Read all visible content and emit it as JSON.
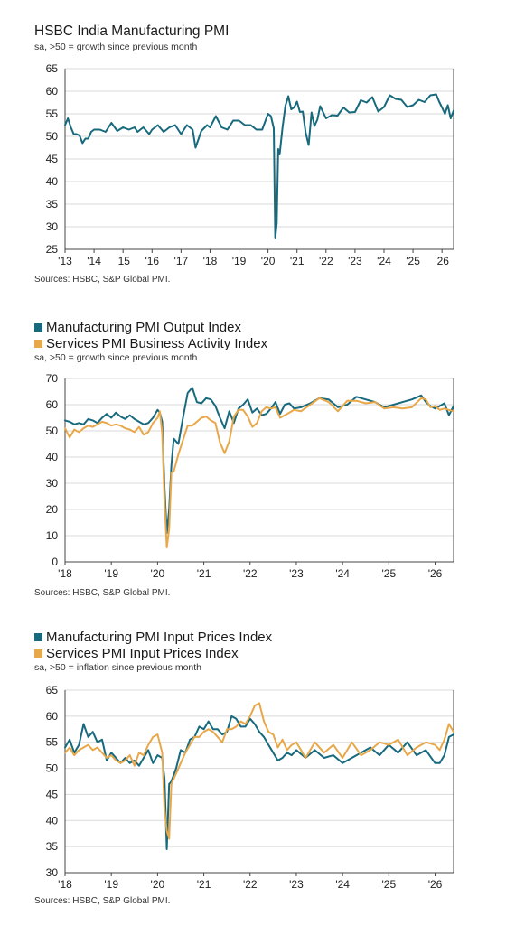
{
  "colors": {
    "manufacturing": "#176a7d",
    "services": "#e8a84a",
    "grid": "#d9d9d9"
  },
  "chart_data": [
    {
      "type": "line",
      "title": "HSBC India Manufacturing PMI",
      "subtitle": "sa, >50 = growth since previous month",
      "source": "Sources: HSBC, S&P Global PMI.",
      "xticks": [
        "'13",
        "'14",
        "'15",
        "'16",
        "'17",
        "'18",
        "'19",
        "'20",
        "'21",
        "'22",
        "'23",
        "'24",
        "'25",
        "'26"
      ],
      "xrange": [
        2013,
        2026.4
      ],
      "ylim": [
        25,
        65
      ],
      "yticks": [
        25,
        30,
        35,
        40,
        45,
        50,
        55,
        60,
        65
      ],
      "grid": true,
      "series": [
        {
          "color": "manufacturing",
          "x": [
            2013.0,
            2013.1,
            2013.2,
            2013.3,
            2013.4,
            2013.5,
            2013.6,
            2013.7,
            2013.8,
            2013.9,
            2014.0,
            2014.2,
            2014.4,
            2014.6,
            2014.8,
            2015.0,
            2015.2,
            2015.4,
            2015.5,
            2015.7,
            2015.9,
            2016.0,
            2016.2,
            2016.4,
            2016.6,
            2016.8,
            2017.0,
            2017.2,
            2017.4,
            2017.5,
            2017.7,
            2017.9,
            2018.0,
            2018.2,
            2018.4,
            2018.6,
            2018.8,
            2019.0,
            2019.2,
            2019.4,
            2019.6,
            2019.8,
            2020.0,
            2020.1,
            2020.2,
            2020.25,
            2020.3,
            2020.35,
            2020.4,
            2020.5,
            2020.6,
            2020.7,
            2020.8,
            2020.9,
            2021.0,
            2021.1,
            2021.2,
            2021.3,
            2021.4,
            2021.5,
            2021.6,
            2021.7,
            2021.8,
            2022.0,
            2022.2,
            2022.4,
            2022.6,
            2022.8,
            2023.0,
            2023.2,
            2023.4,
            2023.6,
            2023.8,
            2024.0,
            2024.2,
            2024.4,
            2024.6,
            2024.8,
            2025.0,
            2025.2,
            2025.4,
            2025.6,
            2025.8,
            2025.9,
            2026.0,
            2026.1,
            2026.2,
            2026.3,
            2026.4
          ],
          "y": [
            52.5,
            54.0,
            52.0,
            50.5,
            50.5,
            50.2,
            48.5,
            49.5,
            49.5,
            51.0,
            51.5,
            51.5,
            51.0,
            53.0,
            51.2,
            52.0,
            51.5,
            52.0,
            51.0,
            52.0,
            50.5,
            51.5,
            52.5,
            51.0,
            52.0,
            52.5,
            50.5,
            52.5,
            51.5,
            47.5,
            51.2,
            52.5,
            52.0,
            54.5,
            52.0,
            51.5,
            53.5,
            53.5,
            52.5,
            52.5,
            51.5,
            51.5,
            55.0,
            54.5,
            51.8,
            27.4,
            30.8,
            47.2,
            46.0,
            52.0,
            56.8,
            58.9,
            56.0,
            56.4,
            57.7,
            55.4,
            55.5,
            50.8,
            48.1,
            55.3,
            52.3,
            53.7,
            56.7,
            54.0,
            54.7,
            54.6,
            56.4,
            55.3,
            55.4,
            58.0,
            57.5,
            58.7,
            55.5,
            56.5,
            59.1,
            58.3,
            58.1,
            56.5,
            56.9,
            58.1,
            57.6,
            59.1,
            59.3,
            57.7,
            56.4,
            55.0,
            56.9,
            54.0,
            55.7
          ]
        }
      ]
    },
    {
      "type": "line",
      "title": "",
      "subtitle": "sa, >50 = growth since previous month",
      "source": "Sources: HSBC, S&P Global PMI.",
      "xticks": [
        "'18",
        "'19",
        "'20",
        "'21",
        "'22",
        "'23",
        "'24",
        "'25",
        "'26"
      ],
      "xrange": [
        2018,
        2026.4
      ],
      "ylim": [
        0,
        70
      ],
      "yticks": [
        0,
        10,
        20,
        30,
        40,
        50,
        60,
        70
      ],
      "grid": true,
      "legend": "top-left",
      "series": [
        {
          "name": "Manufacturing PMI Output Index",
          "color": "manufacturing",
          "x": [
            2018.0,
            2018.1,
            2018.2,
            2018.3,
            2018.4,
            2018.5,
            2018.6,
            2018.7,
            2018.8,
            2018.9,
            2019.0,
            2019.1,
            2019.2,
            2019.3,
            2019.4,
            2019.5,
            2019.6,
            2019.7,
            2019.8,
            2019.9,
            2020.0,
            2020.05,
            2020.1,
            2020.15,
            2020.2,
            2020.25,
            2020.3,
            2020.35,
            2020.45,
            2020.55,
            2020.65,
            2020.75,
            2020.85,
            2020.95,
            2021.05,
            2021.15,
            2021.25,
            2021.35,
            2021.45,
            2021.55,
            2021.65,
            2021.75,
            2021.85,
            2021.95,
            2022.05,
            2022.15,
            2022.25,
            2022.35,
            2022.45,
            2022.55,
            2022.65,
            2022.75,
            2022.85,
            2022.95,
            2023.1,
            2023.3,
            2023.5,
            2023.7,
            2023.9,
            2024.1,
            2024.3,
            2024.5,
            2024.7,
            2024.9,
            2025.1,
            2025.3,
            2025.5,
            2025.7,
            2025.8,
            2025.9,
            2026.0,
            2026.1,
            2026.2,
            2026.3,
            2026.4
          ],
          "y": [
            54.0,
            53.5,
            52.5,
            53.0,
            52.5,
            54.5,
            54.0,
            53.0,
            55.0,
            56.5,
            55.0,
            57.0,
            55.5,
            54.5,
            56.0,
            54.5,
            53.5,
            52.5,
            53.0,
            55.0,
            58.0,
            57.0,
            53.5,
            28.0,
            11.0,
            20.0,
            37.0,
            47.0,
            45.0,
            55.0,
            64.5,
            66.5,
            61.0,
            60.5,
            62.5,
            62.0,
            59.5,
            55.0,
            51.0,
            57.5,
            53.0,
            58.5,
            60.0,
            62.0,
            57.0,
            58.5,
            56.0,
            56.5,
            58.5,
            61.0,
            56.5,
            60.0,
            60.5,
            58.5,
            59.0,
            60.5,
            62.5,
            62.0,
            59.0,
            60.0,
            63.0,
            62.0,
            61.0,
            59.0,
            60.0,
            61.0,
            62.0,
            63.5,
            61.0,
            59.5,
            58.5,
            59.5,
            60.5,
            56.0,
            59.5
          ]
        },
        {
          "name": "Services PMI Business Activity Index",
          "color": "services",
          "x": [
            2018.0,
            2018.1,
            2018.2,
            2018.3,
            2018.4,
            2018.5,
            2018.6,
            2018.7,
            2018.8,
            2018.9,
            2019.0,
            2019.1,
            2019.2,
            2019.3,
            2019.4,
            2019.5,
            2019.6,
            2019.7,
            2019.8,
            2019.9,
            2020.0,
            2020.05,
            2020.1,
            2020.15,
            2020.2,
            2020.25,
            2020.3,
            2020.35,
            2020.45,
            2020.55,
            2020.65,
            2020.75,
            2020.85,
            2020.95,
            2021.05,
            2021.15,
            2021.25,
            2021.35,
            2021.45,
            2021.55,
            2021.65,
            2021.75,
            2021.85,
            2021.95,
            2022.05,
            2022.15,
            2022.25,
            2022.35,
            2022.45,
            2022.55,
            2022.65,
            2022.75,
            2022.85,
            2022.95,
            2023.1,
            2023.3,
            2023.5,
            2023.7,
            2023.9,
            2024.1,
            2024.3,
            2024.5,
            2024.7,
            2024.9,
            2025.1,
            2025.3,
            2025.5,
            2025.7,
            2025.8,
            2025.9,
            2026.0,
            2026.1,
            2026.2,
            2026.3,
            2026.4
          ],
          "y": [
            51.0,
            47.5,
            50.5,
            49.5,
            51.0,
            52.0,
            51.5,
            52.5,
            53.5,
            53.0,
            52.0,
            52.5,
            52.0,
            51.0,
            50.5,
            49.5,
            51.5,
            48.5,
            49.5,
            53.0,
            55.0,
            57.5,
            49.0,
            23.0,
            5.5,
            12.5,
            34.0,
            34.5,
            41.0,
            46.5,
            52.0,
            52.0,
            53.5,
            55.0,
            55.5,
            54.0,
            53.0,
            45.5,
            41.5,
            46.0,
            55.5,
            58.0,
            58.0,
            55.5,
            51.5,
            53.0,
            57.5,
            59.0,
            58.5,
            59.0,
            55.0,
            56.0,
            57.0,
            58.0,
            57.5,
            60.0,
            62.5,
            61.0,
            57.5,
            61.5,
            61.5,
            60.5,
            61.0,
            58.5,
            59.0,
            58.5,
            59.0,
            62.5,
            62.0,
            59.0,
            59.5,
            58.0,
            58.5,
            58.0,
            57.5
          ]
        }
      ]
    },
    {
      "type": "line",
      "title": "",
      "subtitle": "sa, >50 = inflation since previous month",
      "source": "Sources: HSBC, S&P Global PMI.",
      "xticks": [
        "'18",
        "'19",
        "'20",
        "'21",
        "'22",
        "'23",
        "'24",
        "'25",
        "'26"
      ],
      "xrange": [
        2018,
        2026.4
      ],
      "ylim": [
        30,
        65
      ],
      "yticks": [
        30,
        35,
        40,
        45,
        50,
        55,
        60,
        65
      ],
      "grid": true,
      "legend": "top-left",
      "series": [
        {
          "name": "Manufacturing PMI Input Prices Index",
          "color": "manufacturing",
          "x": [
            2018.0,
            2018.1,
            2018.2,
            2018.3,
            2018.4,
            2018.5,
            2018.6,
            2018.7,
            2018.8,
            2018.9,
            2019.0,
            2019.1,
            2019.2,
            2019.3,
            2019.4,
            2019.5,
            2019.6,
            2019.7,
            2019.8,
            2019.9,
            2020.0,
            2020.1,
            2020.15,
            2020.2,
            2020.25,
            2020.3,
            2020.4,
            2020.5,
            2020.6,
            2020.7,
            2020.8,
            2020.9,
            2021.0,
            2021.1,
            2021.2,
            2021.3,
            2021.4,
            2021.5,
            2021.6,
            2021.7,
            2021.8,
            2021.9,
            2022.0,
            2022.1,
            2022.2,
            2022.3,
            2022.4,
            2022.5,
            2022.6,
            2022.7,
            2022.8,
            2022.9,
            2023.0,
            2023.2,
            2023.4,
            2023.6,
            2023.8,
            2024.0,
            2024.2,
            2024.4,
            2024.6,
            2024.8,
            2025.0,
            2025.2,
            2025.4,
            2025.6,
            2025.8,
            2026.0,
            2026.1,
            2026.2,
            2026.3,
            2026.4
          ],
          "y": [
            54.0,
            55.5,
            53.0,
            54.5,
            58.5,
            56.0,
            57.0,
            55.0,
            55.5,
            51.5,
            53.0,
            52.0,
            51.0,
            52.0,
            51.0,
            51.5,
            50.5,
            52.0,
            53.5,
            51.0,
            52.5,
            52.0,
            48.0,
            34.5,
            47.0,
            47.5,
            50.0,
            53.5,
            53.0,
            55.5,
            56.0,
            58.0,
            57.5,
            59.0,
            57.5,
            57.5,
            56.5,
            57.0,
            60.0,
            59.5,
            58.0,
            58.0,
            59.5,
            58.5,
            57.0,
            56.0,
            54.5,
            53.0,
            51.5,
            52.0,
            53.0,
            52.5,
            53.5,
            52.0,
            53.5,
            52.0,
            52.5,
            51.0,
            52.0,
            53.0,
            54.0,
            52.5,
            54.5,
            53.0,
            55.0,
            52.5,
            53.5,
            51.0,
            51.0,
            52.5,
            56.0,
            56.5
          ]
        },
        {
          "name": "Services PMI Input Prices Index",
          "color": "services",
          "x": [
            2018.0,
            2018.1,
            2018.2,
            2018.3,
            2018.4,
            2018.5,
            2018.6,
            2018.7,
            2018.8,
            2018.9,
            2019.0,
            2019.1,
            2019.2,
            2019.3,
            2019.4,
            2019.5,
            2019.6,
            2019.7,
            2019.8,
            2019.9,
            2020.0,
            2020.1,
            2020.15,
            2020.2,
            2020.25,
            2020.3,
            2020.4,
            2020.5,
            2020.6,
            2020.7,
            2020.8,
            2020.9,
            2021.0,
            2021.1,
            2021.2,
            2021.3,
            2021.4,
            2021.5,
            2021.6,
            2021.7,
            2021.8,
            2021.9,
            2022.0,
            2022.1,
            2022.2,
            2022.3,
            2022.4,
            2022.5,
            2022.6,
            2022.7,
            2022.8,
            2022.9,
            2023.0,
            2023.2,
            2023.4,
            2023.6,
            2023.8,
            2024.0,
            2024.2,
            2024.4,
            2024.6,
            2024.8,
            2025.0,
            2025.2,
            2025.4,
            2025.6,
            2025.8,
            2026.0,
            2026.1,
            2026.2,
            2026.3,
            2026.4
          ],
          "y": [
            53.0,
            54.0,
            52.5,
            53.5,
            54.0,
            54.5,
            53.5,
            54.0,
            53.0,
            52.0,
            52.5,
            51.5,
            51.0,
            51.5,
            52.5,
            50.5,
            53.0,
            52.5,
            54.5,
            56.0,
            56.5,
            53.0,
            42.0,
            38.0,
            36.5,
            47.0,
            49.0,
            51.0,
            53.0,
            54.5,
            56.0,
            56.0,
            57.0,
            57.5,
            57.0,
            56.0,
            55.0,
            57.5,
            57.5,
            58.0,
            59.0,
            58.5,
            60.0,
            62.0,
            62.5,
            59.0,
            57.0,
            56.5,
            54.0,
            55.5,
            53.5,
            54.5,
            55.0,
            52.0,
            55.0,
            53.0,
            54.5,
            52.0,
            55.0,
            52.5,
            53.5,
            55.0,
            54.5,
            55.5,
            52.5,
            54.0,
            55.0,
            54.5,
            53.5,
            55.5,
            58.5,
            57.0
          ]
        }
      ]
    }
  ]
}
